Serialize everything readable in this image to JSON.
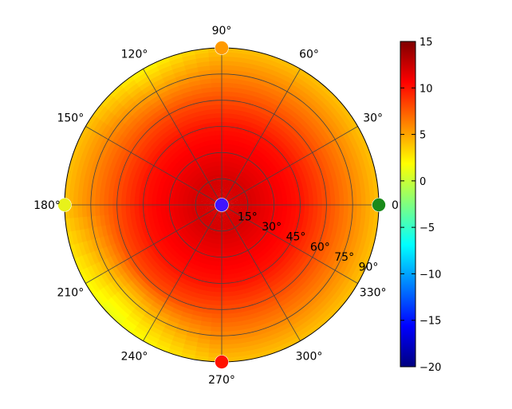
{
  "chart_data": {
    "type": "heatmap",
    "subtype": "polar-heatmap",
    "angle_ticks_deg": [
      0,
      30,
      60,
      90,
      120,
      150,
      180,
      210,
      240,
      270,
      300,
      330
    ],
    "angle_labels": [
      "0°",
      "30°",
      "60°",
      "90°",
      "120°",
      "150°",
      "180°",
      "210°",
      "240°",
      "270°",
      "300°",
      "330°"
    ],
    "radial_ticks_deg": [
      15,
      30,
      45,
      60,
      75,
      90
    ],
    "radial_labels": [
      "15°",
      "30°",
      "45°",
      "60°",
      "75°",
      "90°"
    ],
    "rlim": [
      0,
      90
    ],
    "grid": true,
    "colormap": "jet",
    "colorbar": {
      "min": -20,
      "max": 15,
      "ticks": [
        15,
        10,
        5,
        0,
        -5,
        -10,
        -15,
        -20
      ],
      "tick_labels": [
        "15",
        "10",
        "5",
        "0",
        "−5",
        "−10",
        "−15",
        "−20"
      ],
      "placement": "right"
    },
    "field": {
      "description_values": "approximate value as function of polar angle from center (deg)",
      "radius_deg": [
        0,
        15,
        30,
        45,
        60,
        75,
        90
      ],
      "value": [
        12,
        12,
        11,
        10,
        8,
        6,
        4
      ],
      "low_sector_angle_deg": 225,
      "low_sector_value_at_edge": 1
    },
    "markers": [
      {
        "label": "center",
        "angle_deg": 0,
        "radius_deg": 0,
        "value": -15,
        "color": "#3f14ff"
      },
      {
        "label": "0",
        "angle_deg": 0,
        "radius_deg": 90,
        "value": 0,
        "color": "#1a8a1a"
      },
      {
        "label": "90",
        "angle_deg": 90,
        "radius_deg": 90,
        "value": 7,
        "color": "#ff9a00"
      },
      {
        "label": "180",
        "angle_deg": 180,
        "radius_deg": 90,
        "value": 3,
        "color": "#e8f21a"
      },
      {
        "label": "270",
        "angle_deg": 270,
        "radius_deg": 90,
        "value": 12,
        "color": "#ff1200"
      }
    ]
  }
}
